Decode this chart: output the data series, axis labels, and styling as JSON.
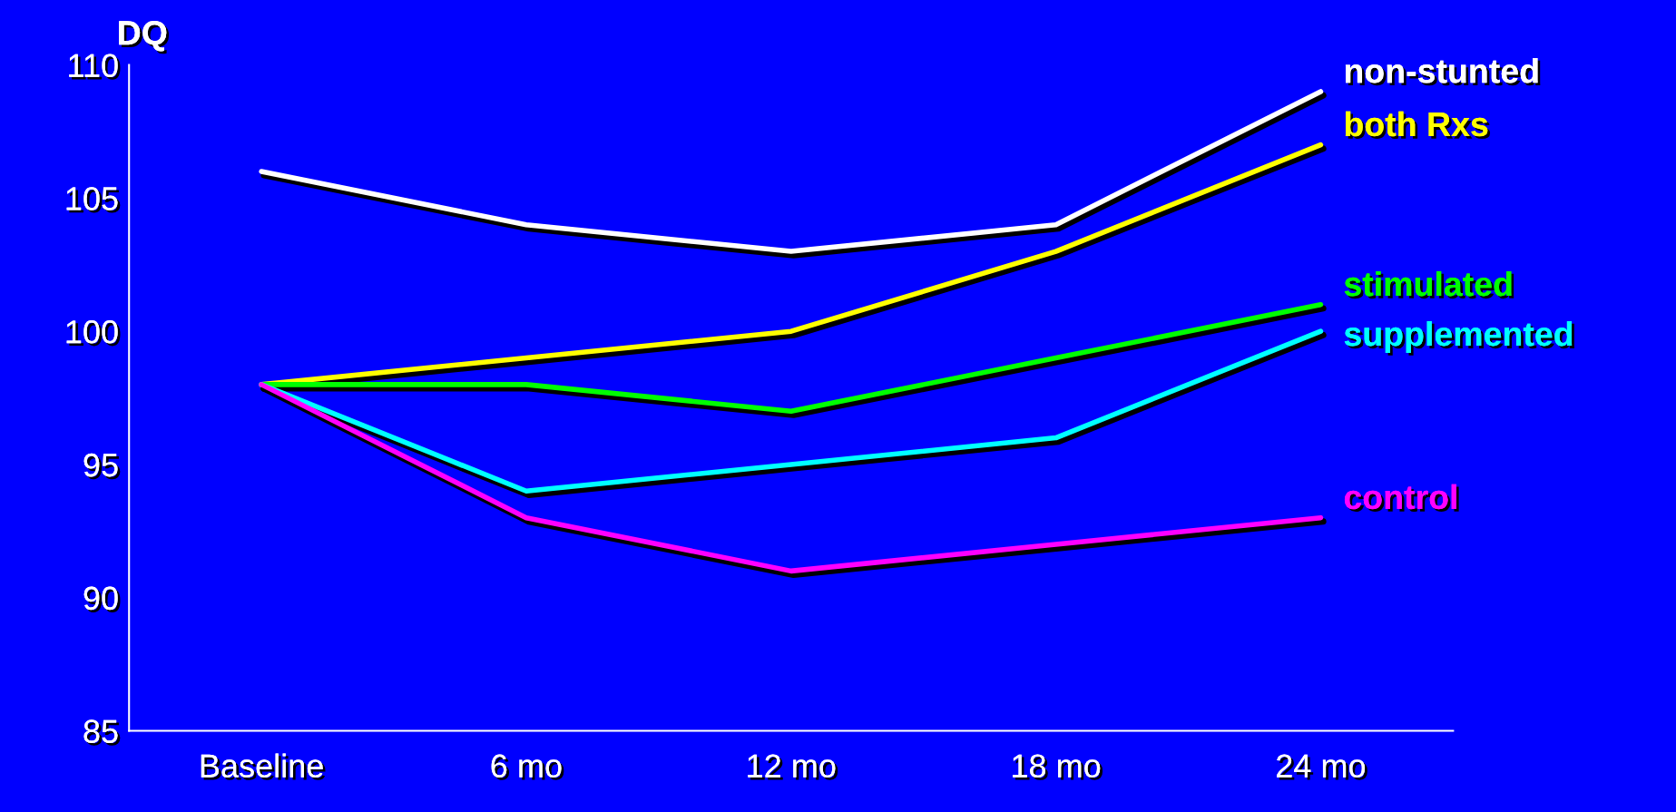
{
  "chart_data": {
    "type": "line",
    "ylabel": "DQ",
    "categories": [
      "Baseline",
      "6 mo",
      "12 mo",
      "18 mo",
      "24 mo"
    ],
    "series": [
      {
        "name": "non-stunted",
        "color": "#ffffff",
        "values": [
          106,
          104,
          103,
          104,
          109
        ]
      },
      {
        "name": "both Rxs",
        "color": "#ffff00",
        "values": [
          98,
          99,
          100,
          103,
          107
        ]
      },
      {
        "name": "stimulated",
        "color": "#00ff00",
        "values": [
          98,
          98,
          97,
          99,
          101
        ]
      },
      {
        "name": "supplemented",
        "color": "#00ffff",
        "values": [
          98,
          94,
          95,
          96,
          100
        ]
      },
      {
        "name": "control",
        "color": "#ff00ff",
        "values": [
          98,
          93,
          91,
          92,
          93
        ]
      }
    ],
    "ylim": [
      85,
      110
    ],
    "yticks": [
      85,
      90,
      95,
      100,
      105,
      110
    ],
    "grid": false,
    "legend": false,
    "marker": "none",
    "line_style": "solid"
  }
}
